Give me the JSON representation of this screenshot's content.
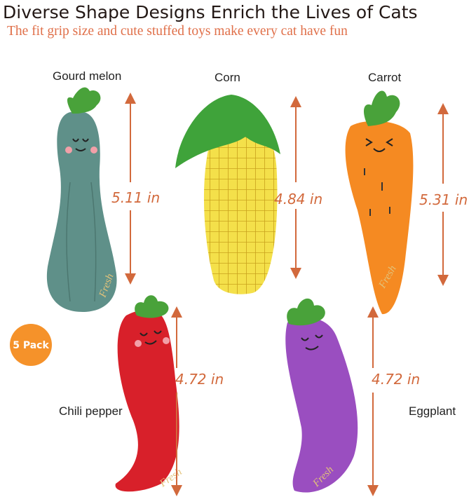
{
  "header": {
    "title": "Diverse Shape Designs Enrich the Lives of Cats",
    "subtitle": "The fit grip size and cute stuffed toys make every cat have fun"
  },
  "badge": {
    "label": "5 Pack",
    "color": "#f5922a"
  },
  "accent_color": "#d2693c",
  "toys": [
    {
      "name": "Gourd melon",
      "size": "5.11 in",
      "color": "#5f9089"
    },
    {
      "name": "Corn",
      "size": "4.84 in",
      "color": "#f2dc3a"
    },
    {
      "name": "Carrot",
      "size": "5.31 in",
      "color": "#f58a22"
    },
    {
      "name": "Chili pepper",
      "size": "4.72 in",
      "color": "#d8202a"
    },
    {
      "name": "Eggplant",
      "size": "4.72 in",
      "color": "#9a4ec0"
    }
  ],
  "embroidery": "Fresh"
}
